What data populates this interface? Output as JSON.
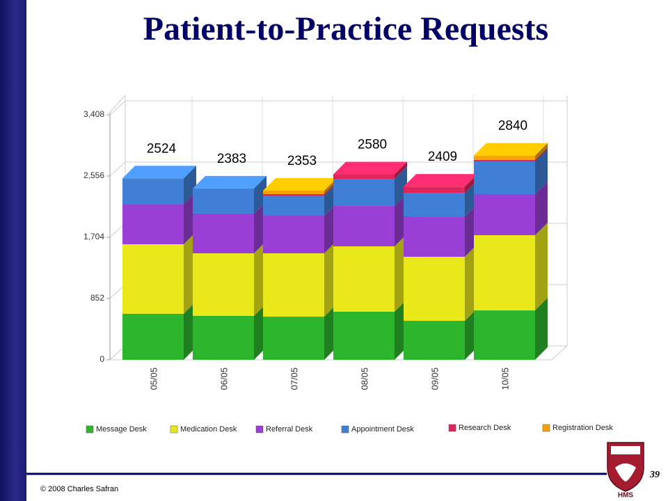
{
  "slide": {
    "title": "Patient-to-Practice Requests",
    "footer": "© 2008 Charles Safran",
    "page_number": "39",
    "logo_text": "HMS"
  },
  "chart_data": {
    "type": "stacked-bar-3d",
    "categories": [
      "05/05",
      "06/05",
      "07/05",
      "08/05",
      "09/05",
      "10/05"
    ],
    "series": [
      {
        "name": "Message Desk",
        "color": "#2eb52e",
        "values": [
          640,
          610,
          600,
          668,
          542,
          687
        ]
      },
      {
        "name": "Medication Desk",
        "color": "#e8e81a",
        "values": [
          967,
          871,
          881,
          910,
          891,
          1046
        ]
      },
      {
        "name": "Referral Desk",
        "color": "#9a3fd6",
        "values": [
          561,
          552,
          523,
          561,
          561,
          571
        ]
      },
      {
        "name": "Appointment Desk",
        "color": "#3f7fd6",
        "values": [
          356,
          350,
          281,
          378,
          329,
          455
        ]
      },
      {
        "name": "Research Desk",
        "color": "#e0245c",
        "values": [
          0,
          0,
          20,
          63,
          86,
          20
        ]
      },
      {
        "name": "Registration Desk",
        "color": "#f5a300",
        "values": [
          0,
          0,
          48,
          0,
          0,
          61
        ]
      }
    ],
    "totals": [
      2524,
      2383,
      2353,
      2580,
      2409,
      2840
    ],
    "ylim": [
      0,
      3408
    ],
    "yticks": [
      0,
      852,
      {
        "value": 1704,
        "label": "1,704"
      },
      {
        "value": 2556,
        "label": "2,556"
      },
      {
        "value": 3408,
        "label": "3,408"
      }
    ],
    "grid": true
  }
}
